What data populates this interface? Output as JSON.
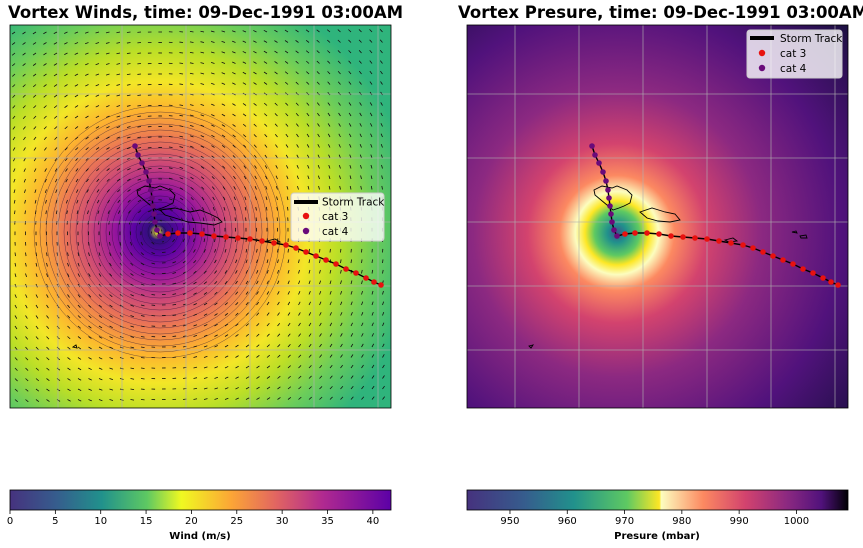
{
  "panels": [
    {
      "title": "Vortex Winds, time: 09-Dec-1991 03:00AM",
      "colorbar_label": "Wind (m/s)",
      "colorbar_ticks": [
        "0",
        "5",
        "10",
        "15",
        "20",
        "25",
        "30",
        "35",
        "40"
      ],
      "colormap": "plasma_r_over_viridis",
      "legend": {
        "placement": "center-right",
        "items": [
          "Storm Track",
          "cat 3",
          "cat 4"
        ]
      }
    },
    {
      "title": "Vortex Presure, time: 09-Dec-1991 03:00AM",
      "colorbar_label": "Presure (mbar)",
      "colorbar_ticks": [
        "950",
        "960",
        "970",
        "980",
        "990",
        "1000"
      ],
      "colormap": "viridis_magma",
      "legend": {
        "placement": "top-right",
        "items": [
          "Storm Track",
          "cat 3",
          "cat 4"
        ]
      }
    }
  ],
  "colors": {
    "cat3": "#e8110f",
    "cat4": "#6a0a7a",
    "track": "#000000",
    "grid": "#b0b0b0"
  },
  "chart_data": [
    {
      "type": "heatmap",
      "title": "Vortex Winds, time: 09-Dec-1991 03:00AM",
      "colorbar": {
        "label": "Wind (m/s)",
        "range": [
          0,
          42
        ],
        "ticks": [
          0,
          5,
          10,
          15,
          20,
          25,
          30,
          35,
          40
        ]
      },
      "grid": true,
      "legend": [
        "Storm Track",
        "cat 3",
        "cat 4"
      ]
    },
    {
      "type": "heatmap",
      "title": "Vortex Presure, time: 09-Dec-1991 03:00AM",
      "colorbar": {
        "label": "Presure (mbar)",
        "range": [
          942.5,
          1009
        ],
        "ticks": [
          950,
          960,
          970,
          980,
          990,
          1000
        ]
      },
      "grid": true,
      "legend": [
        "Storm Track",
        "cat 3",
        "cat 4"
      ]
    }
  ]
}
